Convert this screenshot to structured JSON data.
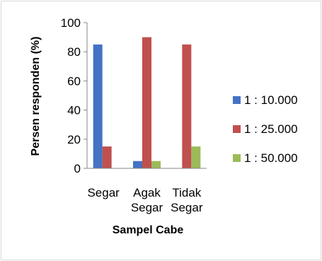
{
  "chart_data": {
    "type": "bar",
    "categories": [
      [
        "Segar"
      ],
      [
        "Agak",
        "Segar"
      ],
      [
        "Tidak",
        "Segar"
      ]
    ],
    "series": [
      {
        "name": "1 : 10.000",
        "color": "#4472c4",
        "values": [
          85,
          5,
          0
        ]
      },
      {
        "name": "1 : 25.000",
        "color": "#c0504d",
        "values": [
          15,
          90,
          85
        ]
      },
      {
        "name": "1 : 50.000",
        "color": "#9bbb59",
        "values": [
          0,
          5,
          15
        ]
      }
    ],
    "xlabel": "Sampel Cabe",
    "ylabel": "Persen responden (%)",
    "ylim": [
      0,
      100
    ],
    "yticks": [
      "0",
      "20",
      "40",
      "60",
      "80",
      "100"
    ],
    "grid": false,
    "legend_position": "right"
  }
}
